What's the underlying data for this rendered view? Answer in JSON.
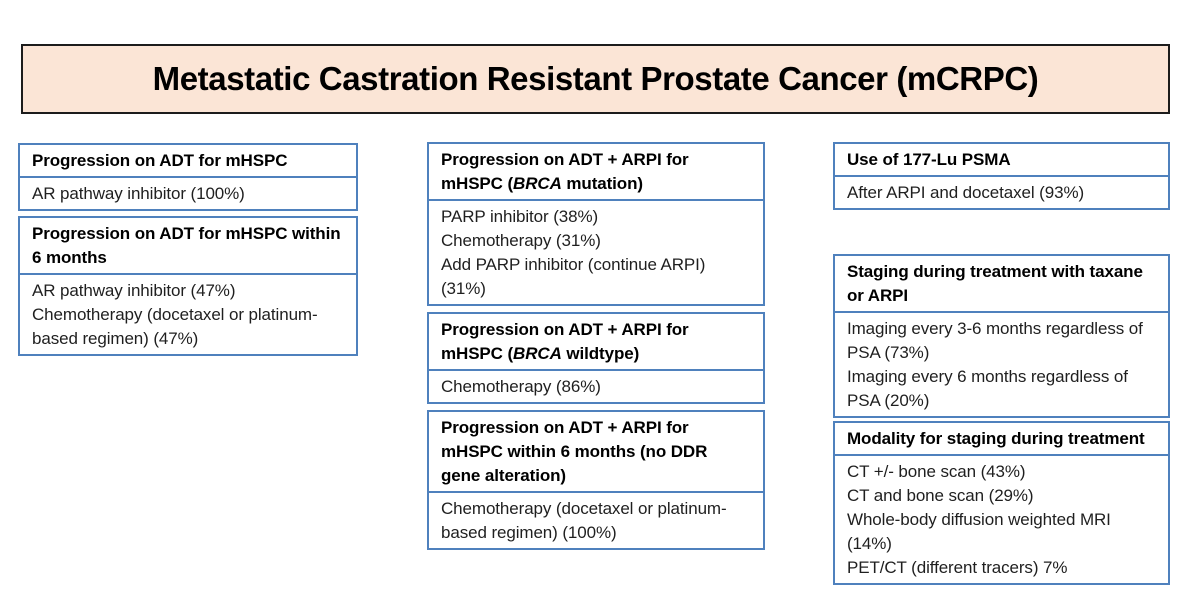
{
  "title": {
    "text": "Metastatic Castration Resistant Prostate Cancer (mCRPC)"
  },
  "colors": {
    "page_bg": "#ffffff",
    "box_border": "#4f81bd",
    "title_bg": "#fbe5d6",
    "title_border": "#1c1c1c",
    "heading_text": "#000000",
    "body_text": "#1f1f1f"
  },
  "columns": {
    "left": {
      "groups": [
        {
          "header": "Progression on ADT for mHSPC",
          "items": [
            "AR pathway inhibitor (100%)"
          ]
        },
        {
          "header": "Progression on ADT for mHSPC within 6 months",
          "items": [
            "AR pathway inhibitor (47%)",
            "Chemotherapy (docetaxel or platinum-based regimen) (47%)"
          ]
        }
      ]
    },
    "middle": {
      "groups": [
        {
          "header_pre": "Progression on ADT + ARPI for mHSPC (",
          "header_italic": "BRCA",
          "header_post": " mutation)",
          "items": [
            "PARP inhibitor (38%)",
            "Chemotherapy (31%)",
            "Add PARP inhibitor (continue ARPI) (31%)"
          ]
        },
        {
          "header_pre": "Progression on ADT + ARPI for mHSPC (",
          "header_italic": "BRCA",
          "header_post": " wildtype)",
          "items": [
            "Chemotherapy (86%)"
          ]
        },
        {
          "header": "Progression on ADT + ARPI for mHSPC within 6 months (no DDR gene alteration)",
          "items": [
            "Chemotherapy (docetaxel or platinum-based regimen) (100%)"
          ]
        }
      ]
    },
    "right": {
      "groups": [
        {
          "header": "Use of 177-Lu PSMA",
          "items": [
            "After ARPI and docetaxel (93%)"
          ]
        },
        {
          "header": "Staging during treatment with taxane or ARPI",
          "items": [
            "Imaging every 3-6 months regardless of PSA (73%)",
            "Imaging every 6 months regardless of PSA (20%)"
          ]
        },
        {
          "header": "Modality for staging during treatment",
          "items": [
            "CT +/- bone scan (43%)",
            "CT and bone scan (29%)",
            "Whole-body diffusion weighted MRI (14%)",
            "PET/CT (different tracers) 7%"
          ]
        }
      ]
    }
  }
}
